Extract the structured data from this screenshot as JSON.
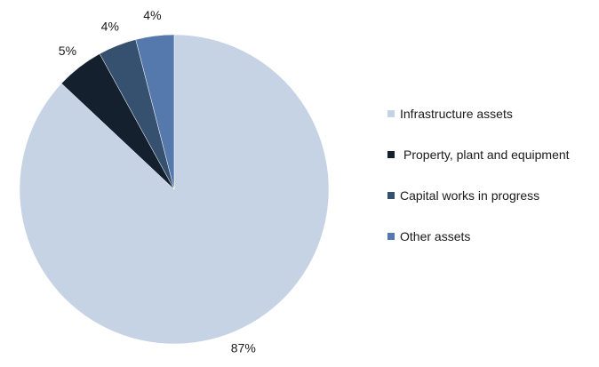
{
  "chart_data": {
    "type": "pie",
    "categories": [
      "Infrastructure assets",
      "Property, plant and equipment",
      "Capital works in progress",
      "Other assets"
    ],
    "values": [
      87,
      5,
      4,
      4
    ],
    "labels": [
      "87%",
      "5%",
      "4%",
      "4%"
    ],
    "colors": [
      "#c5d3e5",
      "#14202e",
      "#36506f",
      "#5679ad"
    ],
    "legend": "right"
  },
  "legend": {
    "items": [
      {
        "label": "Infrastructure assets",
        "color": "#c5d3e5"
      },
      {
        "label": "Property, plant and equipment",
        "color": "#14202e"
      },
      {
        "label": "Capital works in progress",
        "color": "#36506f"
      },
      {
        "label": "Other assets",
        "color": "#5679ad"
      }
    ]
  }
}
